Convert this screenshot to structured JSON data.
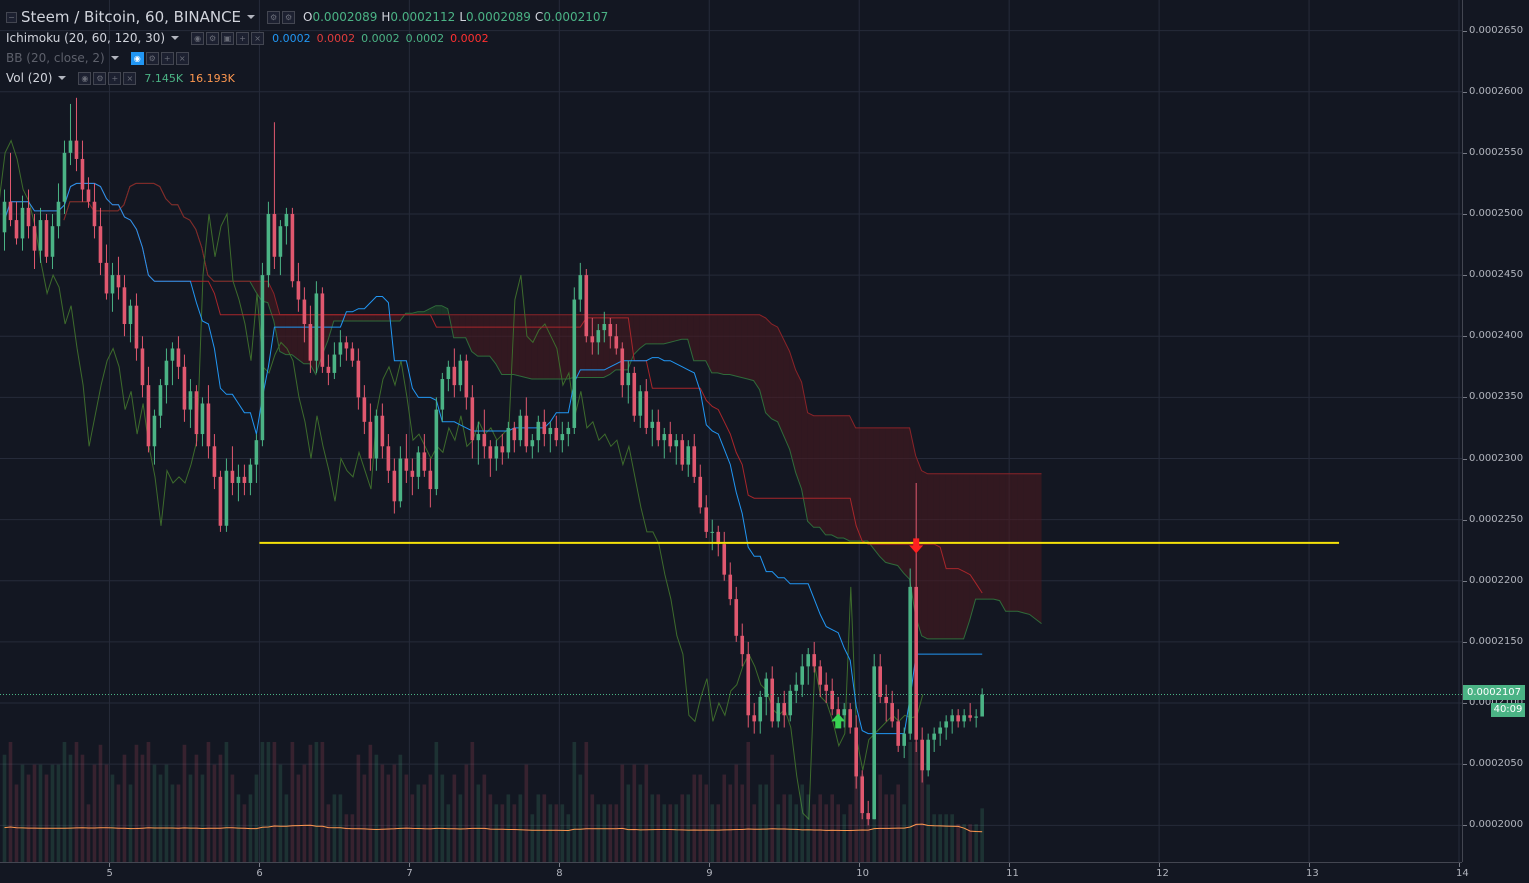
{
  "header": {
    "symbol_title": "Steem / Bitcoin, 60, BINANCE",
    "ohlc": [
      {
        "label": "O",
        "value": "0.0002089"
      },
      {
        "label": "H",
        "value": "0.0002112"
      },
      {
        "label": "L",
        "value": "0.0002089"
      },
      {
        "label": "C",
        "value": "0.0002107"
      }
    ]
  },
  "indicators": {
    "ichimoku": {
      "label": "Ichimoku (20, 60, 120, 30)",
      "values": [
        "0.0002",
        "0.0002",
        "0.0002",
        "0.0002",
        "0.0002"
      ],
      "colors": [
        "#2196f3",
        "#e03c3c",
        "#4bb385",
        "#4bb385",
        "#ff3030"
      ]
    },
    "bb": {
      "label": "BB (20, close, 2)"
    },
    "vol": {
      "label": "Vol (20)",
      "values": [
        "7.145K",
        "16.193K"
      ],
      "colors": [
        "#4bb385",
        "#ff9850"
      ]
    }
  },
  "price_axis": {
    "ticks": [
      "0.0002650",
      "0.0002600",
      "0.0002550",
      "0.0002500",
      "0.0002450",
      "0.0002400",
      "0.0002350",
      "0.0002300",
      "0.0002250",
      "0.0002200",
      "0.0002150",
      "0.0002100",
      "0.0002050",
      "0.0002000"
    ],
    "last_price": "0.0002107",
    "countdown": "40:09"
  },
  "time_axis": {
    "ticks": [
      "5",
      "6",
      "7",
      "8",
      "9",
      "10",
      "11",
      "12",
      "13",
      "14"
    ]
  },
  "colors": {
    "background": "#131722",
    "up": "#4bb385",
    "down": "#e0586f",
    "tenkan": "#2196f3",
    "kijun": "#a8262b",
    "chikou": "#3d6b2c",
    "cloud_bull": "#1e4a2c",
    "cloud_bear": "#4d1a1f",
    "support_line": "#f5e20a",
    "volume_ma": "#ff9850"
  },
  "chart_data": {
    "type": "candlestick",
    "symbol": "Steem / Bitcoin",
    "interval": "60",
    "exchange": "BINANCE",
    "y_axis": {
      "min": 0.000197,
      "max": 0.0002675
    },
    "x_axis": {
      "label_days": [
        5,
        6,
        7,
        8,
        9,
        10,
        11,
        12,
        13,
        14
      ],
      "start_day": 4.27,
      "end_day": 14.02
    },
    "candles": [
      [
        4.3,
        0.0002485,
        0.000252,
        0.000247,
        0.000251
      ],
      [
        4.34,
        0.000251,
        0.000255,
        0.000249,
        0.0002495
      ],
      [
        4.38,
        0.0002495,
        0.000251,
        0.0002475,
        0.000248
      ],
      [
        4.42,
        0.000248,
        0.0002515,
        0.000247,
        0.0002505
      ],
      [
        4.46,
        0.0002505,
        0.000252,
        0.000248,
        0.000249
      ],
      [
        4.5,
        0.000249,
        0.00025,
        0.0002455,
        0.000247
      ],
      [
        4.54,
        0.000247,
        0.0002505,
        0.000246,
        0.0002495
      ],
      [
        4.58,
        0.0002495,
        0.00025,
        0.000246,
        0.0002465
      ],
      [
        4.62,
        0.0002465,
        0.00025,
        0.0002455,
        0.000249
      ],
      [
        4.66,
        0.000249,
        0.0002525,
        0.000248,
        0.000251
      ],
      [
        4.7,
        0.000251,
        0.000256,
        0.00025,
        0.000255
      ],
      [
        4.74,
        0.000255,
        0.000259,
        0.000254,
        0.000256
      ],
      [
        4.78,
        0.000256,
        0.0002595,
        0.0002535,
        0.0002545
      ],
      [
        4.82,
        0.0002545,
        0.000256,
        0.000251,
        0.000252
      ],
      [
        4.86,
        0.000252,
        0.000253,
        0.0002505,
        0.000251
      ],
      [
        4.9,
        0.000251,
        0.0002525,
        0.000248,
        0.000249
      ],
      [
        4.94,
        0.000249,
        0.0002505,
        0.000245,
        0.000246
      ],
      [
        4.98,
        0.000246,
        0.0002475,
        0.000243,
        0.0002435
      ],
      [
        5.02,
        0.0002435,
        0.000246,
        0.000242,
        0.000245
      ],
      [
        5.06,
        0.000245,
        0.0002465,
        0.000243,
        0.000244
      ],
      [
        5.1,
        0.000244,
        0.000245,
        0.00024,
        0.000241
      ],
      [
        5.14,
        0.000241,
        0.000243,
        0.0002395,
        0.0002425
      ],
      [
        5.18,
        0.0002425,
        0.0002435,
        0.000238,
        0.000239
      ],
      [
        5.22,
        0.000239,
        0.00024,
        0.000235,
        0.000236
      ],
      [
        5.26,
        0.000236,
        0.0002375,
        0.0002305,
        0.000231
      ],
      [
        5.3,
        0.000231,
        0.000234,
        0.0002295,
        0.0002335
      ],
      [
        5.34,
        0.0002335,
        0.0002365,
        0.0002325,
        0.000236
      ],
      [
        5.38,
        0.000236,
        0.000239,
        0.0002345,
        0.000238
      ],
      [
        5.42,
        0.000238,
        0.0002395,
        0.000236,
        0.000239
      ],
      [
        5.46,
        0.000239,
        0.00024,
        0.0002365,
        0.0002375
      ],
      [
        5.5,
        0.0002375,
        0.0002385,
        0.000233,
        0.000234
      ],
      [
        5.54,
        0.000234,
        0.0002365,
        0.0002325,
        0.0002355
      ],
      [
        5.58,
        0.0002355,
        0.000236,
        0.000231,
        0.000232
      ],
      [
        5.62,
        0.000232,
        0.000235,
        0.000231,
        0.0002345
      ],
      [
        5.66,
        0.0002345,
        0.000236,
        0.00023,
        0.000231
      ],
      [
        5.7,
        0.000231,
        0.000232,
        0.0002275,
        0.0002285
      ],
      [
        5.74,
        0.0002285,
        0.000229,
        0.000224,
        0.0002245
      ],
      [
        5.78,
        0.0002245,
        0.00023,
        0.000224,
        0.000229
      ],
      [
        5.82,
        0.000229,
        0.000231,
        0.000227,
        0.000228
      ],
      [
        5.86,
        0.000228,
        0.0002295,
        0.0002265,
        0.0002285
      ],
      [
        5.9,
        0.0002285,
        0.0002295,
        0.000227,
        0.000228
      ],
      [
        5.94,
        0.000228,
        0.00023,
        0.000227,
        0.0002295
      ],
      [
        5.98,
        0.0002295,
        0.000232,
        0.000228,
        0.0002315
      ],
      [
        6.02,
        0.0002315,
        0.000246,
        0.000231,
        0.000245
      ],
      [
        6.06,
        0.000245,
        0.000251,
        0.000244,
        0.00025
      ],
      [
        6.1,
        0.00025,
        0.0002575,
        0.0002455,
        0.0002465
      ],
      [
        6.14,
        0.0002465,
        0.0002495,
        0.000245,
        0.000249
      ],
      [
        6.18,
        0.000249,
        0.0002505,
        0.0002475,
        0.00025
      ],
      [
        6.22,
        0.00025,
        0.0002505,
        0.000244,
        0.0002445
      ],
      [
        6.26,
        0.0002445,
        0.000246,
        0.000242,
        0.000243
      ],
      [
        6.3,
        0.000243,
        0.000244,
        0.0002395,
        0.000241
      ],
      [
        6.34,
        0.000241,
        0.0002425,
        0.000237,
        0.000238
      ],
      [
        6.38,
        0.000238,
        0.0002445,
        0.000237,
        0.0002435
      ],
      [
        6.42,
        0.0002435,
        0.000244,
        0.000237,
        0.0002375
      ],
      [
        6.46,
        0.0002375,
        0.0002385,
        0.000236,
        0.000237
      ],
      [
        6.5,
        0.000237,
        0.0002395,
        0.0002365,
        0.0002385
      ],
      [
        6.54,
        0.0002385,
        0.0002405,
        0.0002375,
        0.0002395
      ],
      [
        6.58,
        0.0002395,
        0.00024,
        0.000238,
        0.000239
      ],
      [
        6.62,
        0.000239,
        0.0002395,
        0.0002375,
        0.000238
      ],
      [
        6.66,
        0.000238,
        0.000239,
        0.000234,
        0.000235
      ],
      [
        6.7,
        0.000235,
        0.000236,
        0.000232,
        0.000233
      ],
      [
        6.74,
        0.000233,
        0.0002345,
        0.000229,
        0.00023
      ],
      [
        6.78,
        0.00023,
        0.000234,
        0.000229,
        0.0002335
      ],
      [
        6.82,
        0.0002335,
        0.0002345,
        0.00023,
        0.000231
      ],
      [
        6.86,
        0.000231,
        0.000232,
        0.000228,
        0.000229
      ],
      [
        6.9,
        0.000229,
        0.00023,
        0.0002255,
        0.0002265
      ],
      [
        6.94,
        0.0002265,
        0.000231,
        0.000226,
        0.00023
      ],
      [
        6.98,
        0.00023,
        0.000232,
        0.000228,
        0.000229
      ],
      [
        7.02,
        0.000229,
        0.00023,
        0.000227,
        0.0002285
      ],
      [
        7.06,
        0.0002285,
        0.000231,
        0.0002275,
        0.0002305
      ],
      [
        7.1,
        0.0002305,
        0.000232,
        0.0002285,
        0.000229
      ],
      [
        7.14,
        0.000229,
        0.00023,
        0.000226,
        0.0002275
      ],
      [
        7.18,
        0.0002275,
        0.000235,
        0.000227,
        0.000234
      ],
      [
        7.22,
        0.000234,
        0.000237,
        0.000233,
        0.0002365
      ],
      [
        7.26,
        0.0002365,
        0.000238,
        0.0002355,
        0.0002375
      ],
      [
        7.3,
        0.0002375,
        0.000239,
        0.000235,
        0.000236
      ],
      [
        7.34,
        0.000236,
        0.0002385,
        0.0002355,
        0.000238
      ],
      [
        7.38,
        0.000238,
        0.0002385,
        0.000234,
        0.000235
      ],
      [
        7.42,
        0.000235,
        0.000236,
        0.00023,
        0.0002315
      ],
      [
        7.46,
        0.0002315,
        0.000233,
        0.0002295,
        0.000232
      ],
      [
        7.5,
        0.000232,
        0.000234,
        0.00023,
        0.000231
      ],
      [
        7.54,
        0.000231,
        0.0002315,
        0.0002285,
        0.00023
      ],
      [
        7.58,
        0.00023,
        0.0002315,
        0.000229,
        0.000231
      ],
      [
        7.62,
        0.000231,
        0.000232,
        0.0002295,
        0.0002305
      ],
      [
        7.66,
        0.0002305,
        0.000233,
        0.00023,
        0.0002325
      ],
      [
        7.7,
        0.0002325,
        0.000233,
        0.0002305,
        0.0002315
      ],
      [
        7.74,
        0.0002315,
        0.000234,
        0.000231,
        0.0002335
      ],
      [
        7.78,
        0.0002335,
        0.000235,
        0.0002305,
        0.000231
      ],
      [
        7.82,
        0.000231,
        0.000232,
        0.00023,
        0.0002315
      ],
      [
        7.86,
        0.0002315,
        0.0002335,
        0.0002305,
        0.000233
      ],
      [
        7.9,
        0.000233,
        0.000234,
        0.000231,
        0.000232
      ],
      [
        7.94,
        0.000232,
        0.000233,
        0.0002305,
        0.0002325
      ],
      [
        7.98,
        0.0002325,
        0.0002335,
        0.000231,
        0.0002315
      ],
      [
        8.02,
        0.0002315,
        0.000233,
        0.0002305,
        0.000232
      ],
      [
        8.06,
        0.000232,
        0.000233,
        0.000231,
        0.0002325
      ],
      [
        8.1,
        0.0002325,
        0.000244,
        0.000232,
        0.000243
      ],
      [
        8.14,
        0.000243,
        0.000246,
        0.000242,
        0.000245
      ],
      [
        8.18,
        0.000245,
        0.0002455,
        0.0002395,
        0.00024
      ],
      [
        8.22,
        0.00024,
        0.0002415,
        0.0002385,
        0.0002395
      ],
      [
        8.26,
        0.0002395,
        0.000241,
        0.0002385,
        0.0002405
      ],
      [
        8.3,
        0.0002405,
        0.000242,
        0.0002395,
        0.000241
      ],
      [
        8.34,
        0.000241,
        0.0002415,
        0.000239,
        0.00024
      ],
      [
        8.38,
        0.00024,
        0.000241,
        0.0002385,
        0.000239
      ],
      [
        8.42,
        0.000239,
        0.0002395,
        0.000235,
        0.000236
      ],
      [
        8.46,
        0.000236,
        0.000238,
        0.0002345,
        0.000237
      ],
      [
        8.5,
        0.000237,
        0.0002375,
        0.000233,
        0.0002335
      ],
      [
        8.54,
        0.0002335,
        0.000236,
        0.0002325,
        0.0002355
      ],
      [
        8.58,
        0.0002355,
        0.0002365,
        0.000232,
        0.0002325
      ],
      [
        8.62,
        0.0002325,
        0.000234,
        0.000231,
        0.000233
      ],
      [
        8.66,
        0.000233,
        0.000234,
        0.000231,
        0.0002315
      ],
      [
        8.7,
        0.0002315,
        0.0002325,
        0.00023,
        0.000232
      ],
      [
        8.74,
        0.000232,
        0.000233,
        0.0002305,
        0.000231
      ],
      [
        8.78,
        0.000231,
        0.000232,
        0.0002295,
        0.0002315
      ],
      [
        8.82,
        0.0002315,
        0.000232,
        0.000229,
        0.0002295
      ],
      [
        8.86,
        0.0002295,
        0.0002315,
        0.0002285,
        0.000231
      ],
      [
        8.9,
        0.000231,
        0.000232,
        0.000228,
        0.0002285
      ],
      [
        8.94,
        0.0002285,
        0.0002295,
        0.0002255,
        0.000226
      ],
      [
        8.98,
        0.000226,
        0.000227,
        0.0002235,
        0.000224
      ],
      [
        9.02,
        0.000224,
        0.000225,
        0.0002225,
        0.000224
      ],
      [
        9.06,
        0.000224,
        0.0002245,
        0.000222,
        0.000223
      ],
      [
        9.1,
        0.000223,
        0.000224,
        0.00022,
        0.0002205
      ],
      [
        9.14,
        0.0002205,
        0.0002215,
        0.000218,
        0.0002185
      ],
      [
        9.18,
        0.0002185,
        0.0002195,
        0.000215,
        0.0002155
      ],
      [
        9.22,
        0.0002155,
        0.0002165,
        0.000213,
        0.000214
      ],
      [
        9.26,
        0.000214,
        0.000215,
        0.000208,
        0.000209
      ],
      [
        9.3,
        0.000209,
        0.00021,
        0.0002075,
        0.0002085
      ],
      [
        9.34,
        0.0002085,
        0.000211,
        0.0002075,
        0.0002105
      ],
      [
        9.38,
        0.0002105,
        0.0002125,
        0.000209,
        0.000212
      ],
      [
        9.42,
        0.000212,
        0.000213,
        0.000208,
        0.0002085
      ],
      [
        9.46,
        0.0002085,
        0.0002105,
        0.000208,
        0.00021
      ],
      [
        9.5,
        0.00021,
        0.000211,
        0.000208,
        0.000209
      ],
      [
        9.54,
        0.000209,
        0.0002115,
        0.0002085,
        0.000211
      ],
      [
        9.58,
        0.000211,
        0.0002125,
        0.00021,
        0.0002115
      ],
      [
        9.62,
        0.0002115,
        0.000214,
        0.0002105,
        0.000213
      ],
      [
        9.66,
        0.000213,
        0.0002145,
        0.0002115,
        0.000214
      ],
      [
        9.7,
        0.000214,
        0.000215,
        0.0002125,
        0.000213
      ],
      [
        9.74,
        0.000213,
        0.0002135,
        0.0002105,
        0.0002115
      ],
      [
        9.78,
        0.0002115,
        0.0002125,
        0.00021,
        0.000211
      ],
      [
        9.82,
        0.000211,
        0.000212,
        0.000209,
        0.0002095
      ],
      [
        9.86,
        0.0002095,
        0.0002105,
        0.000208,
        0.000209
      ],
      [
        9.9,
        0.000209,
        0.00021,
        0.000208,
        0.0002095
      ],
      [
        9.94,
        0.0002095,
        0.00021,
        0.0002075,
        0.000208
      ],
      [
        9.98,
        0.000208,
        0.000209,
        0.000203,
        0.000204
      ],
      [
        10.02,
        0.000204,
        0.0002045,
        0.0002005,
        0.000201
      ],
      [
        10.06,
        0.000201,
        0.000202,
        0.0002,
        0.0002005
      ],
      [
        10.1,
        0.0002005,
        0.000214,
        0.0002005,
        0.000213
      ],
      [
        10.14,
        0.000213,
        0.000214,
        0.00021,
        0.0002105
      ],
      [
        10.18,
        0.0002105,
        0.0002115,
        0.0002085,
        0.00021
      ],
      [
        10.22,
        0.00021,
        0.000211,
        0.000208,
        0.0002085
      ],
      [
        10.26,
        0.0002085,
        0.0002095,
        0.000206,
        0.0002065
      ],
      [
        10.3,
        0.0002065,
        0.000208,
        0.0002055,
        0.0002075
      ],
      [
        10.34,
        0.0002075,
        0.000221,
        0.000207,
        0.0002195
      ],
      [
        10.38,
        0.0002195,
        0.000228,
        0.000206,
        0.000207
      ],
      [
        10.42,
        0.000207,
        0.000208,
        0.0002035,
        0.0002045
      ],
      [
        10.46,
        0.0002045,
        0.0002075,
        0.000204,
        0.000207
      ],
      [
        10.5,
        0.000207,
        0.000208,
        0.000206,
        0.0002075
      ],
      [
        10.54,
        0.0002075,
        0.0002085,
        0.0002065,
        0.000208
      ],
      [
        10.58,
        0.000208,
        0.000209,
        0.000207,
        0.0002085
      ],
      [
        10.62,
        0.0002085,
        0.0002095,
        0.0002075,
        0.000209
      ],
      [
        10.66,
        0.000209,
        0.0002095,
        0.000208,
        0.0002085
      ],
      [
        10.7,
        0.0002085,
        0.0002095,
        0.000208,
        0.000209
      ],
      [
        10.74,
        0.000209,
        0.00021,
        0.0002085,
        0.0002088
      ],
      [
        10.78,
        0.0002088,
        0.0002095,
        0.000208,
        0.0002089
      ],
      [
        10.82,
        0.0002089,
        0.0002112,
        0.0002089,
        0.0002107
      ]
    ],
    "support_level": 0.0002231,
    "support_line": {
      "from_day": 6.0,
      "to_day": 13.2
    },
    "markers": [
      {
        "type": "buy",
        "day": 9.86,
        "price": 0.0002085,
        "color": "#39d353"
      },
      {
        "type": "sell",
        "day": 10.38,
        "price": 0.0002229,
        "color": "#ff2020"
      }
    ]
  }
}
